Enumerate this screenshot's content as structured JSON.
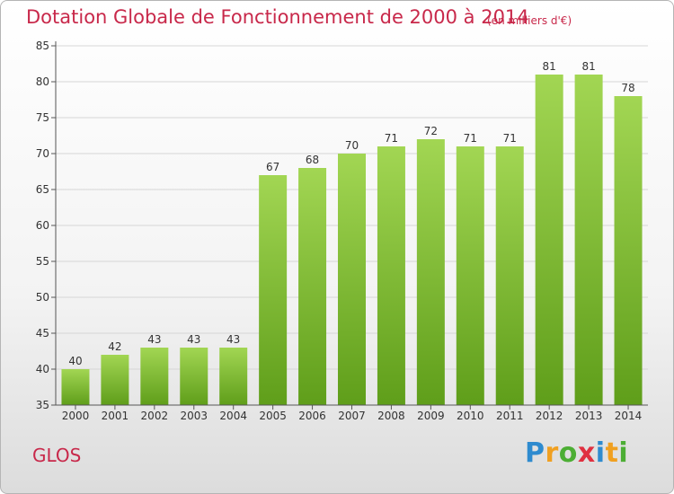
{
  "header": {
    "title": "Dotation Globale de Fonctionnement de 2000 à 2014",
    "unit_note": "(en milliers d'€)"
  },
  "footer": {
    "commune": "GLOS",
    "logo_letters": [
      {
        "char": "P",
        "color": "#2e8bcf"
      },
      {
        "char": "r",
        "color": "#f0a020"
      },
      {
        "char": "o",
        "color": "#4cae34"
      },
      {
        "char": "x",
        "color": "#e03040"
      },
      {
        "char": "i",
        "color": "#2e8bcf"
      },
      {
        "char": "t",
        "color": "#f0a020"
      },
      {
        "char": "i",
        "color": "#4cae34"
      }
    ]
  },
  "colors": {
    "title": "#c8284a",
    "bar_top": "#a2d653",
    "bar_bottom": "#5f9e1a",
    "grid": "#d6d6d6",
    "text": "#333333"
  },
  "chart_data": {
    "type": "bar",
    "categories": [
      "2000",
      "2001",
      "2002",
      "2003",
      "2004",
      "2005",
      "2006",
      "2007",
      "2008",
      "2009",
      "2010",
      "2011",
      "2012",
      "2013",
      "2014"
    ],
    "values": [
      40,
      42,
      43,
      43,
      43,
      67,
      68,
      70,
      71,
      72,
      71,
      71,
      81,
      81,
      78
    ],
    "ylim": [
      35,
      85
    ],
    "yticks": [
      35,
      40,
      45,
      50,
      55,
      60,
      65,
      70,
      75,
      80,
      85
    ],
    "grid": true,
    "xlabel": "",
    "ylabel": ""
  }
}
